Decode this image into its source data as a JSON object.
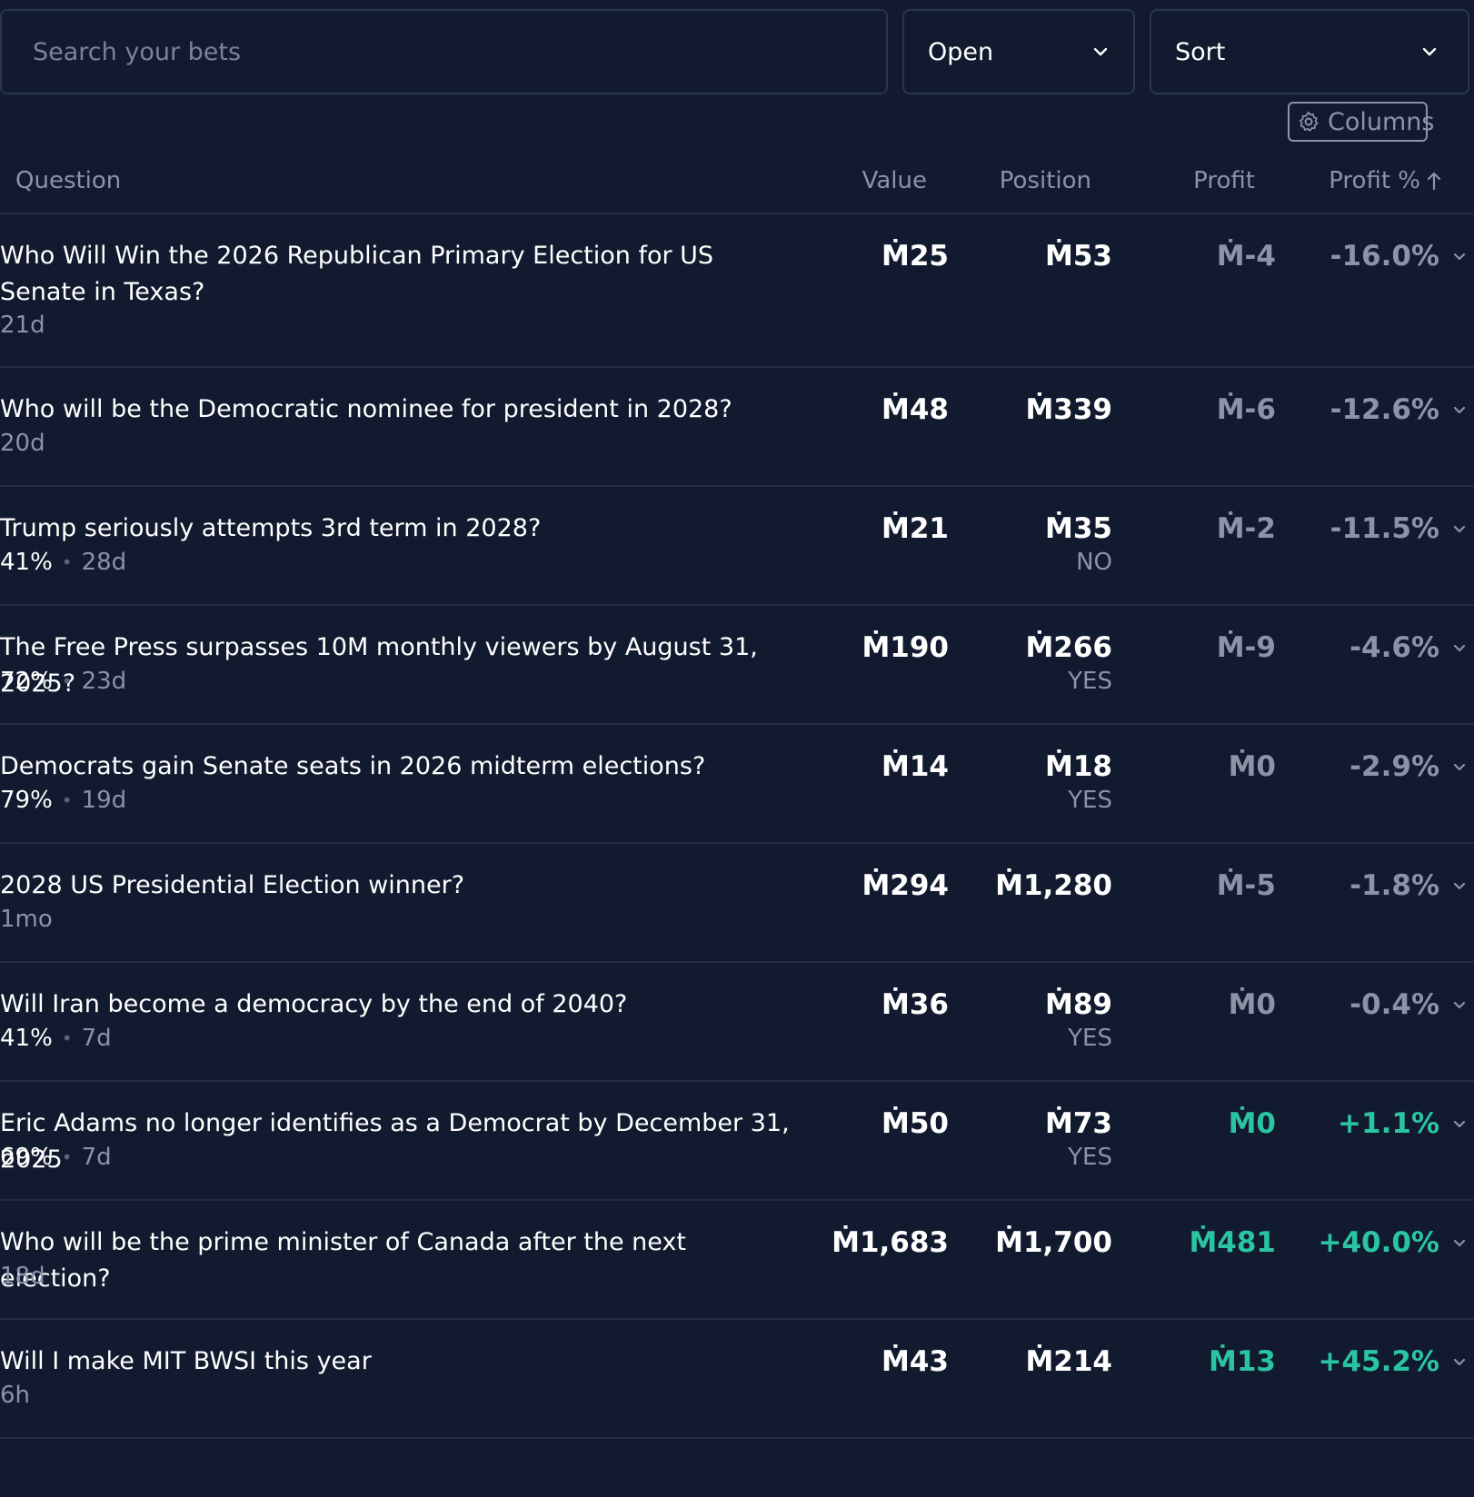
{
  "search": {
    "placeholder": "Search your bets"
  },
  "filter": {
    "selected": "Open"
  },
  "sort": {
    "selected": "Sort"
  },
  "columns_button": {
    "label": "Columns",
    "icon": "gear-icon"
  },
  "table": {
    "headers": {
      "question": "Question",
      "value": "Value",
      "position": "Position",
      "profit": "Profit",
      "profit_pct": "Profit %"
    },
    "sort_indicator_icon": "arrow-up-icon",
    "rows": [
      {
        "title": "Who Will Win the 2026 Republican Primary Election for US Senate in Texas?",
        "prob": "",
        "time": "21d",
        "value": "Ṁ25",
        "position": "Ṁ53",
        "outcome": "",
        "profit": "Ṁ-4",
        "profit_pct": "-16.0%",
        "positive": false
      },
      {
        "title": "Who will be the Democratic nominee for president in 2028?",
        "prob": "",
        "time": "20d",
        "value": "Ṁ48",
        "position": "Ṁ339",
        "outcome": "",
        "profit": "Ṁ-6",
        "profit_pct": "-12.6%",
        "positive": false
      },
      {
        "title": "Trump seriously attempts 3rd term in 2028?",
        "prob": "41%",
        "time": "28d",
        "value": "Ṁ21",
        "position": "Ṁ35",
        "outcome": "NO",
        "profit": "Ṁ-2",
        "profit_pct": "-11.5%",
        "positive": false
      },
      {
        "title": "The Free Press surpasses 10M monthly viewers by August 31, 2025?",
        "prob": "72%",
        "time": "23d",
        "value": "Ṁ190",
        "position": "Ṁ266",
        "outcome": "YES",
        "profit": "Ṁ-9",
        "profit_pct": "-4.6%",
        "positive": false
      },
      {
        "title": "Democrats gain Senate seats in 2026 midterm elections?",
        "prob": "79%",
        "time": "19d",
        "value": "Ṁ14",
        "position": "Ṁ18",
        "outcome": "YES",
        "profit": "Ṁ0",
        "profit_pct": "-2.9%",
        "positive": false
      },
      {
        "title": "2028 US Presidential Election winner?",
        "prob": "",
        "time": "1mo",
        "value": "Ṁ294",
        "position": "Ṁ1,280",
        "outcome": "",
        "profit": "Ṁ-5",
        "profit_pct": "-1.8%",
        "positive": false
      },
      {
        "title": "Will Iran become a democracy by the end of 2040?",
        "prob": "41%",
        "time": "7d",
        "value": "Ṁ36",
        "position": "Ṁ89",
        "outcome": "YES",
        "profit": "Ṁ0",
        "profit_pct": "-0.4%",
        "positive": false
      },
      {
        "title": "Eric Adams no longer identifies as a Democrat by December 31, 2025",
        "prob": "69%",
        "time": "7d",
        "value": "Ṁ50",
        "position": "Ṁ73",
        "outcome": "YES",
        "profit": "Ṁ0",
        "profit_pct": "+1.1%",
        "positive": true
      },
      {
        "title": "Who will be the prime minister of Canada after the next election?",
        "prob": "",
        "time": "18d",
        "value": "Ṁ1,683",
        "position": "Ṁ1,700",
        "outcome": "",
        "profit": "Ṁ481",
        "profit_pct": "+40.0%",
        "positive": true
      },
      {
        "title": "Will I make MIT BWSI this year",
        "prob": "",
        "time": "6h",
        "value": "Ṁ43",
        "position": "Ṁ214",
        "outcome": "",
        "profit": "Ṁ13",
        "profit_pct": "+45.2%",
        "positive": true
      }
    ]
  },
  "colors": {
    "background": "#111a2e",
    "muted": "#8b93a6",
    "positive": "#2bc4a2",
    "border": "#222b42"
  }
}
